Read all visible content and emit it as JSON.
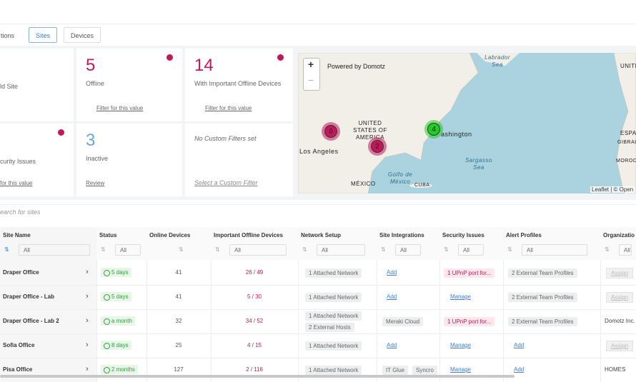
{
  "tabs": [
    "tions",
    "Sites",
    "Devices"
  ],
  "cards": [
    {
      "label": "ld Site"
    },
    {
      "value": 5,
      "label": "Offline",
      "link": "Filter for this value"
    },
    {
      "value": 14,
      "label": "With Important Offline Devices",
      "link": "Filter for this value"
    },
    {
      "label": "curity Issues",
      "link": "for this value"
    },
    {
      "value": 3,
      "label": "Inactive",
      "link": "Review"
    },
    {
      "note": "No Custom Filters set",
      "link": "Select a Custom Filter"
    }
  ],
  "map": {
    "zoom_in": "+",
    "zoom_out": "−",
    "powered": "Powered by Domotz",
    "labels": [
      "Labrador Sea",
      "UNITED STATES OF AMERICA",
      "ashington",
      "Los Angeles",
      "Golfo de México",
      "MÉXICO",
      "CUBA",
      "Sargasso Sea",
      "UNITED KING",
      "ESPA",
      "GIBRAL",
      "MOROCC"
    ],
    "clusters": [
      6,
      2,
      4
    ],
    "attribution": "Leaflet | © Open"
  },
  "search_placeholder": "earch for sites",
  "table": {
    "columns": [
      "Site Name",
      "Status",
      "Online Devices",
      "Important Offline Devices",
      "Network Setup",
      "Site Integrations",
      "Security Issues",
      "Alert Profiles",
      "Organizatio"
    ],
    "filter": "All",
    "rows": [
      {
        "site": "Draper Office",
        "status": "5 days",
        "online": 41,
        "offline": "26 / 49",
        "network": [
          "1 Attached Network"
        ],
        "integration_action": "Add",
        "security_issue": "1 UPnP port for...",
        "alert_profiles": "2 External Team Profiles",
        "org_action": "Assign"
      },
      {
        "site": "Draper Office - Lab",
        "status": "5 days",
        "online": 41,
        "offline": "5 / 30",
        "network": [
          "1 Attached Network"
        ],
        "integration_action": "Add",
        "security_action": "Manage",
        "alert_profiles": "2 External Team Profiles",
        "org_action": "Assign"
      },
      {
        "site": "Draper Office - Lab 2",
        "status": "a month",
        "online": 32,
        "offline": "34 / 52",
        "network": [
          "1 Attached Network",
          "2 External Hosts"
        ],
        "integrations": [
          "Meraki Cloud"
        ],
        "security_issue": "1 UPnP port for...",
        "alert_profiles": "2 External Team Profiles",
        "organization": "Domotz Inc."
      },
      {
        "site": "Sofia Office",
        "status": "8 days",
        "online": 25,
        "offline": "4 / 15",
        "network": [
          "1 Attached Network"
        ],
        "integration_action": "Add",
        "security_action": "Manage",
        "alert_action": "Add",
        "org_action": "Assign"
      },
      {
        "site": "Pisa Office",
        "status": "2 months",
        "online": 127,
        "offline": "2 / 116",
        "network": [
          "1 Attached Network"
        ],
        "integrations": [
          "IT Glue",
          "Syncro"
        ],
        "security_action": "Manage",
        "alert_action": "Add",
        "organization": "HOMES"
      }
    ]
  }
}
